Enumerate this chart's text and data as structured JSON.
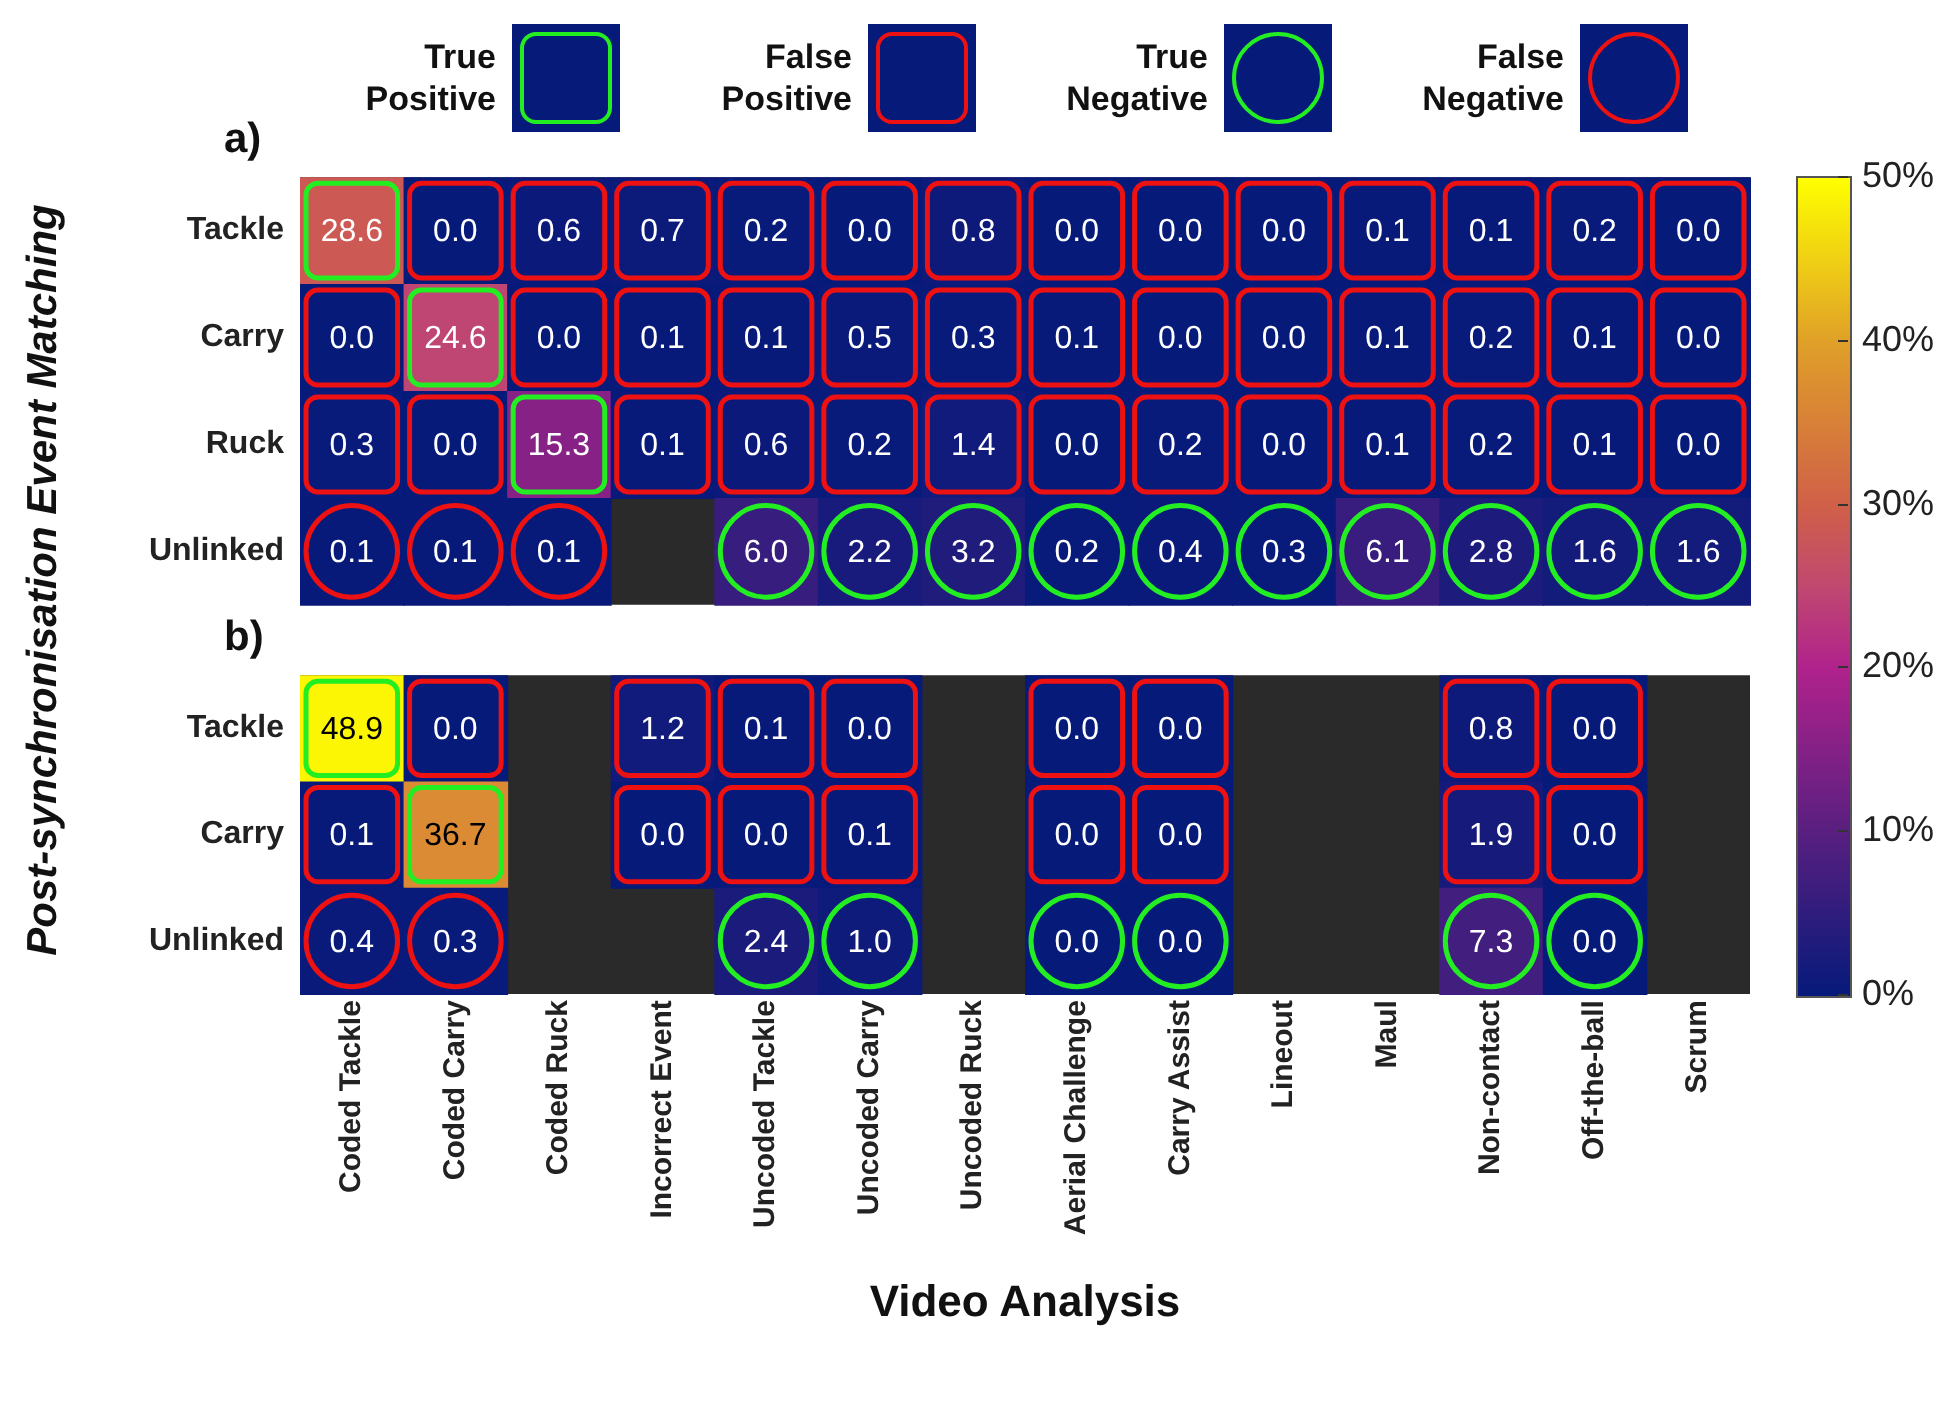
{
  "chart_data": [
    {
      "type": "heatmap",
      "title": "a)",
      "ylabel": "Post-synchronisation Event Matching",
      "annotations": [
        "True Positive",
        "False Positive",
        "True Negative",
        "False Negative"
      ],
      "categories": [
        null,
        null,
        null,
        null,
        null,
        null,
        null,
        null,
        null,
        null,
        null,
        null,
        null,
        null
      ],
      "y_categories": [
        "Tackle",
        "Carry",
        "Ruck",
        "Unlinked"
      ],
      "cells": [
        [
          28.6,
          0.0,
          0.6,
          0.7,
          0.2,
          0.0,
          0.8,
          0.0,
          0.0,
          0.0,
          0.1,
          0.1,
          0.2,
          0.0
        ],
        [
          0.0,
          24.6,
          0.0,
          0.1,
          0.1,
          0.5,
          0.3,
          0.1,
          0.0,
          0.0,
          0.1,
          0.2,
          0.1,
          0.0
        ],
        [
          0.3,
          0.0,
          15.3,
          0.1,
          0.6,
          0.2,
          1.4,
          0.0,
          0.2,
          0.0,
          0.1,
          0.2,
          0.1,
          0.0
        ],
        [
          0.1,
          0.1,
          0.1,
          null,
          6.0,
          2.2,
          3.2,
          0.2,
          0.4,
          0.3,
          6.1,
          2.8,
          1.6,
          1.6
        ]
      ],
      "cell_labels": [
        [
          "28.6",
          "0.0",
          "0.6",
          "0.7",
          "0.2",
          "0.0",
          "0.8",
          "0.0",
          "0.0",
          "0.0",
          "0.1",
          "0.1",
          "0.2",
          "0.0"
        ],
        [
          "0.0",
          "24.6",
          "0.0",
          "0.1",
          "0.1",
          "0.5",
          "0.3",
          "0.1",
          "0.0",
          "0.0",
          "0.1",
          "0.2",
          "0.1",
          "0.0"
        ],
        [
          "0.3",
          "0.0",
          "15.3",
          "0.1",
          "0.6",
          "0.2",
          "1.4",
          "0.0",
          "0.2",
          "0.0",
          "0.1",
          "0.2",
          "0.1",
          "0.0"
        ],
        [
          "0.1",
          "0.1",
          "0.1",
          null,
          "6.0",
          "2.2",
          "3.2",
          "0.2",
          "0.4",
          "0.3",
          "6.1",
          "2.8",
          "1.6",
          "1.6"
        ]
      ],
      "tick_labels": "y"
    },
    {
      "type": "heatmap",
      "title": "b)",
      "xlabel": "Video Analysis",
      "categories": [
        "Coded Tackle",
        "Coded Carry",
        "Coded Ruck",
        "Incorrect Event",
        "Uncoded Tackle",
        "Uncoded Carry",
        "Uncoded Ruck",
        "Aerial Challenge",
        "Carry Assist",
        "Lineout",
        "Maul",
        "Non-contact",
        "Off-the-ball",
        "Scrum"
      ],
      "y_categories": [
        "Tackle",
        "Carry",
        "Unlinked"
      ],
      "cells": [
        [
          48.9,
          0.0,
          null,
          1.2,
          0.1,
          0.0,
          null,
          0.0,
          0.0,
          null,
          null,
          0.8,
          0.0,
          null
        ],
        [
          0.1,
          36.7,
          null,
          0.0,
          0.0,
          0.1,
          null,
          0.0,
          0.0,
          null,
          null,
          1.9,
          0.0,
          null
        ],
        [
          0.4,
          0.3,
          null,
          null,
          2.4,
          1.0,
          null,
          0.0,
          0.0,
          null,
          null,
          7.3,
          0.0,
          null
        ]
      ],
      "cell_labels": [
        [
          "48.9",
          "0.0",
          null,
          "1.2",
          "0.1",
          "0.0",
          null,
          "0.0",
          "0.0",
          null,
          null,
          "0.8",
          "0.0",
          null
        ],
        [
          "0.1",
          "36.7",
          null,
          "0.0",
          "0.0",
          "0.1",
          null,
          "0.0",
          "0.0",
          null,
          null,
          "1.9",
          "0.0",
          null
        ],
        [
          "0.4",
          "0.3",
          null,
          null,
          "2.4",
          "1.0",
          null,
          "0.0",
          "0.0",
          null,
          null,
          "7.3",
          "0.0",
          null
        ]
      ],
      "clim": [
        0,
        50
      ],
      "cticks": [
        {
          "value": 0,
          "label": "0%"
        },
        {
          "value": 10,
          "label": "10%"
        },
        {
          "value": 20,
          "label": "20%"
        },
        {
          "value": 30,
          "label": "30%"
        },
        {
          "value": 40,
          "label": "40%"
        },
        {
          "value": 50,
          "label": "50%"
        }
      ]
    }
  ]
}
